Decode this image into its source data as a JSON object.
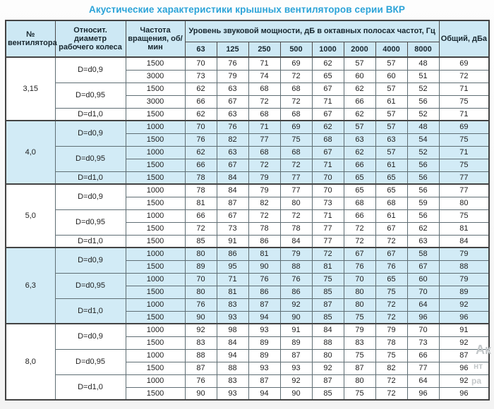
{
  "title": "Акустические характеристики крышных вентиляторов серии ВКР",
  "table": {
    "headers": {
      "fan_number": "№ вентилятора",
      "diameter": "Относит. диаметр рабочего колеса",
      "speed": "Частота вращения, об/мин",
      "spl_group": "Уровень звуковой мощности, дБ в октавных полосах частот, Гц",
      "frequencies": [
        "63",
        "125",
        "250",
        "500",
        "1000",
        "2000",
        "4000",
        "8000"
      ],
      "total": "Общий, дБа"
    },
    "sections": [
      {
        "fan": "3,15",
        "shaded": false,
        "groups": [
          {
            "diameter": "D=d0,9",
            "rows": [
              {
                "speed": "1500",
                "values": [
                  70,
                  76,
                  71,
                  69,
                  62,
                  57,
                  57,
                  48
                ],
                "total": 69
              },
              {
                "speed": "3000",
                "values": [
                  73,
                  79,
                  74,
                  72,
                  65,
                  60,
                  60,
                  51
                ],
                "total": 72
              }
            ]
          },
          {
            "diameter": "D=d0,95",
            "rows": [
              {
                "speed": "1500",
                "values": [
                  62,
                  63,
                  68,
                  68,
                  67,
                  62,
                  57,
                  52
                ],
                "total": 71
              },
              {
                "speed": "3000",
                "values": [
                  66,
                  67,
                  72,
                  72,
                  71,
                  66,
                  61,
                  56
                ],
                "total": 75
              }
            ]
          },
          {
            "diameter": "D=d1,0",
            "rows": [
              {
                "speed": "1500",
                "values": [
                  62,
                  63,
                  68,
                  68,
                  67,
                  62,
                  57,
                  52
                ],
                "total": 71
              }
            ]
          }
        ]
      },
      {
        "fan": "4,0",
        "shaded": true,
        "groups": [
          {
            "diameter": "D=d0,9",
            "rows": [
              {
                "speed": "1000",
                "values": [
                  70,
                  76,
                  71,
                  69,
                  62,
                  57,
                  57,
                  48
                ],
                "total": 69
              },
              {
                "speed": "1500",
                "values": [
                  76,
                  82,
                  77,
                  75,
                  68,
                  63,
                  63,
                  54
                ],
                "total": 75
              }
            ]
          },
          {
            "diameter": "D=d0,95",
            "rows": [
              {
                "speed": "1000",
                "values": [
                  62,
                  63,
                  68,
                  68,
                  67,
                  62,
                  57,
                  52
                ],
                "total": 71
              },
              {
                "speed": "1500",
                "values": [
                  66,
                  67,
                  72,
                  72,
                  71,
                  66,
                  61,
                  56
                ],
                "total": 75
              }
            ]
          },
          {
            "diameter": "D=d1,0",
            "rows": [
              {
                "speed": "1500",
                "values": [
                  78,
                  84,
                  79,
                  77,
                  70,
                  65,
                  65,
                  56
                ],
                "total": 77
              }
            ]
          }
        ]
      },
      {
        "fan": "5,0",
        "shaded": false,
        "groups": [
          {
            "diameter": "D=d0,9",
            "rows": [
              {
                "speed": "1000",
                "values": [
                  78,
                  84,
                  79,
                  77,
                  70,
                  65,
                  65,
                  56
                ],
                "total": 77
              },
              {
                "speed": "1500",
                "values": [
                  81,
                  87,
                  82,
                  80,
                  73,
                  68,
                  68,
                  59
                ],
                "total": 80
              }
            ]
          },
          {
            "diameter": "D=d0,95",
            "rows": [
              {
                "speed": "1000",
                "values": [
                  66,
                  67,
                  72,
                  72,
                  71,
                  66,
                  61,
                  56
                ],
                "total": 75
              },
              {
                "speed": "1500",
                "values": [
                  72,
                  73,
                  78,
                  78,
                  77,
                  72,
                  67,
                  62
                ],
                "total": 81
              }
            ]
          },
          {
            "diameter": "D=d1,0",
            "rows": [
              {
                "speed": "1500",
                "values": [
                  85,
                  91,
                  86,
                  84,
                  77,
                  72,
                  72,
                  63
                ],
                "total": 84
              }
            ]
          }
        ]
      },
      {
        "fan": "6,3",
        "shaded": true,
        "groups": [
          {
            "diameter": "D=d0,9",
            "rows": [
              {
                "speed": "1000",
                "values": [
                  80,
                  86,
                  81,
                  79,
                  72,
                  67,
                  67,
                  58
                ],
                "total": 79
              },
              {
                "speed": "1500",
                "values": [
                  89,
                  95,
                  90,
                  88,
                  81,
                  76,
                  76,
                  67
                ],
                "total": 88
              }
            ]
          },
          {
            "diameter": "D=d0,95",
            "rows": [
              {
                "speed": "1000",
                "values": [
                  70,
                  71,
                  76,
                  76,
                  75,
                  70,
                  65,
                  60
                ],
                "total": 79
              },
              {
                "speed": "1500",
                "values": [
                  80,
                  81,
                  86,
                  86,
                  85,
                  80,
                  75,
                  70
                ],
                "total": 89
              }
            ]
          },
          {
            "diameter": "D=d1,0",
            "rows": [
              {
                "speed": "1000",
                "values": [
                  76,
                  83,
                  87,
                  92,
                  87,
                  80,
                  72,
                  64
                ],
                "total": 92
              },
              {
                "speed": "1500",
                "values": [
                  90,
                  93,
                  94,
                  90,
                  85,
                  75,
                  72,
                  96
                ],
                "total": 96
              }
            ]
          }
        ]
      },
      {
        "fan": "8,0",
        "shaded": false,
        "groups": [
          {
            "diameter": "D=d0,9",
            "rows": [
              {
                "speed": "1000",
                "values": [
                  92,
                  98,
                  93,
                  91,
                  84,
                  79,
                  79,
                  70
                ],
                "total": 91
              },
              {
                "speed": "1500",
                "values": [
                  83,
                  84,
                  89,
                  89,
                  88,
                  83,
                  78,
                  73
                ],
                "total": 92
              }
            ]
          },
          {
            "diameter": "D=d0,95",
            "rows": [
              {
                "speed": "1000",
                "values": [
                  88,
                  94,
                  89,
                  87,
                  80,
                  75,
                  75,
                  66
                ],
                "total": 87
              },
              {
                "speed": "1500",
                "values": [
                  87,
                  88,
                  93,
                  93,
                  92,
                  87,
                  82,
                  77
                ],
                "total": 96
              }
            ]
          },
          {
            "diameter": "D=d1,0",
            "rows": [
              {
                "speed": "1000",
                "values": [
                  76,
                  83,
                  87,
                  92,
                  87,
                  80,
                  72,
                  64
                ],
                "total": 92
              },
              {
                "speed": "1500",
                "values": [
                  90,
                  93,
                  94,
                  90,
                  85,
                  75,
                  72,
                  96
                ],
                "total": 96
              }
            ]
          }
        ]
      }
    ]
  },
  "watermark": {
    "fragments": [
      "Ак",
      "нт",
      "ра"
    ]
  },
  "colors": {
    "title": "#2ba3d8",
    "header_bg": "#cde8f4",
    "shaded_row_bg": "#d2ebf6",
    "border_dark": "#434343",
    "border_light": "#a8bac1",
    "text": "#1e1e1e",
    "watermark": "#c4c8ca"
  }
}
